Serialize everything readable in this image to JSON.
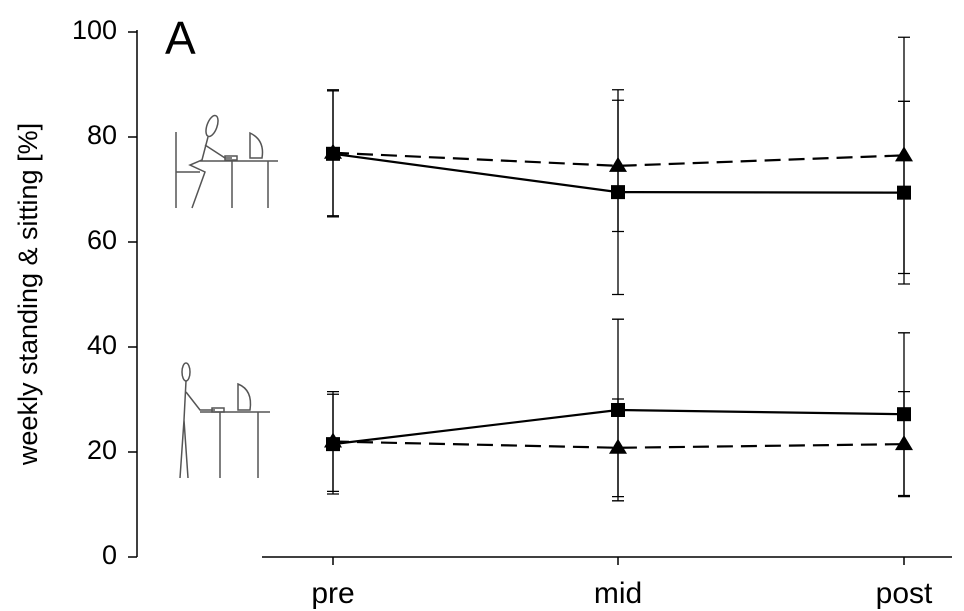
{
  "chart_data": {
    "type": "line",
    "panel_label": "A",
    "y_label": "weekly standing & sitting [%]",
    "categories": [
      "pre",
      "mid",
      "post"
    ],
    "ylim": [
      0,
      100
    ],
    "yticks": [
      0,
      20,
      40,
      60,
      80,
      100
    ],
    "series": [
      {
        "color": "#000000",
        "marker": "square",
        "dash": false,
        "values": [
          76.8,
          69.5,
          69.4
        ],
        "errors": [
          12,
          19.5,
          17.4
        ]
      },
      {
        "color": "#000000",
        "marker": "triangle",
        "dash": true,
        "values": [
          77,
          74.5,
          76.5
        ],
        "errors": [
          12,
          12.5,
          22.5
        ]
      },
      {
        "color": "#000000",
        "marker": "square",
        "dash": false,
        "values": [
          21.5,
          28,
          27.2
        ],
        "errors": [
          9.5,
          17.3,
          15.5
        ]
      },
      {
        "color": "#000000",
        "marker": "triangle",
        "dash": true,
        "values": [
          22,
          20.8,
          21.5
        ],
        "errors": [
          9.5,
          9.3,
          10
        ]
      }
    ]
  }
}
